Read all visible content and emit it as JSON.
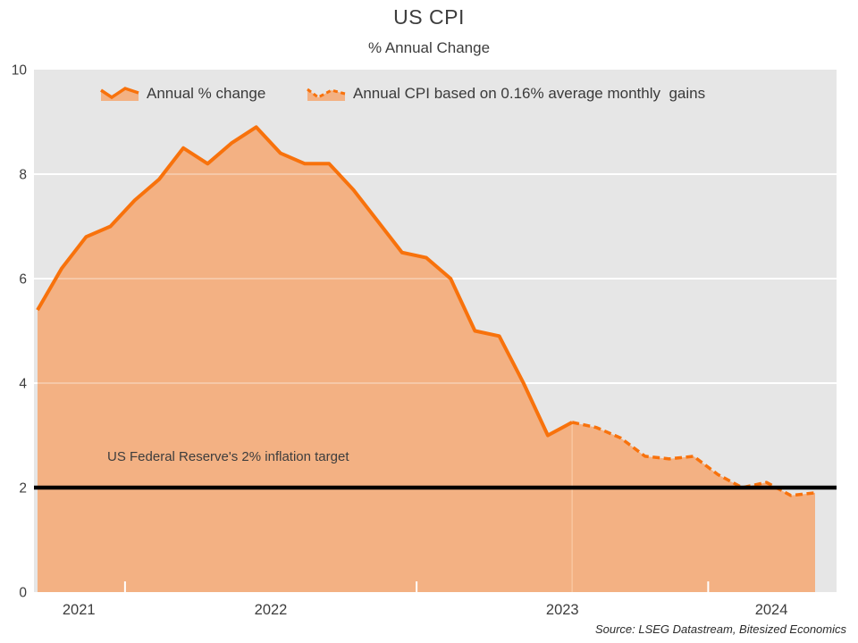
{
  "title": "US CPI",
  "source": "Source: LSEG Datastream, Bitesized Economics",
  "colors": {
    "line": "#f8720c",
    "fill": "#f3b183",
    "fill_divider": "#f8c79f",
    "plot_bg": "#e6e6e6",
    "gridline": "#ffffff",
    "target_line": "#000000",
    "text": "#3d3d3d"
  },
  "chart_data": {
    "type": "area",
    "title": "US CPI",
    "subtitle": "% Annual Change",
    "xlabel": "",
    "ylabel": "",
    "ylim": [
      0,
      10
    ],
    "yticks": [
      0,
      2,
      4,
      6,
      8,
      10
    ],
    "gridlines": [
      2,
      4,
      6,
      8
    ],
    "grid": "horizontal-white",
    "legend_position": "top-left-inside",
    "x_year_ticks": {
      "month_indices": [
        3.6,
        15.6,
        27.6
      ]
    },
    "x_year_labels": [
      {
        "text": "2021",
        "month_index": 1.7
      },
      {
        "text": "2022",
        "month_index": 9.6
      },
      {
        "text": "2023",
        "month_index": 21.6
      },
      {
        "text": "2024",
        "month_index": 30.2
      }
    ],
    "series": [
      {
        "name": "Annual % change",
        "style": "solid-line-with-area",
        "start_index": 0,
        "x": [
          "Sep 2021",
          "Oct 2021",
          "Nov 2021",
          "Dec 2021",
          "Jan 2022",
          "Feb 2022",
          "Mar 2022",
          "Apr 2022",
          "May 2022",
          "Jun 2022",
          "Jul 2022",
          "Aug 2022",
          "Sep 2022",
          "Oct 2022",
          "Nov 2022",
          "Dec 2022",
          "Jan 2023",
          "Feb 2023",
          "Mar 2023",
          "Apr 2023",
          "May 2023",
          "Jun 2023",
          "Jul 2023"
        ],
        "values": [
          5.4,
          6.2,
          6.8,
          7.0,
          7.5,
          7.9,
          8.5,
          8.2,
          8.6,
          8.9,
          8.4,
          8.2,
          8.2,
          7.7,
          7.1,
          6.5,
          6.4,
          6.0,
          5.0,
          4.9,
          4.0,
          3.0,
          3.25
        ]
      },
      {
        "name": "Annual CPI based on 0.16% average monthly  gains",
        "style": "dashed-line-with-area",
        "start_index": 22,
        "x": [
          "Jul 2023",
          "Aug 2023",
          "Sep 2023",
          "Oct 2023",
          "Nov 2023",
          "Dec 2023",
          "Jan 2024",
          "Feb 2024",
          "Mar 2024",
          "Apr 2024",
          "May 2024"
        ],
        "values": [
          3.25,
          3.15,
          2.95,
          2.6,
          2.55,
          2.6,
          2.25,
          2.0,
          2.1,
          1.85,
          1.9
        ]
      }
    ],
    "target_line": {
      "value": 2,
      "label": "US Federal Reserve's 2% inflation target"
    }
  }
}
